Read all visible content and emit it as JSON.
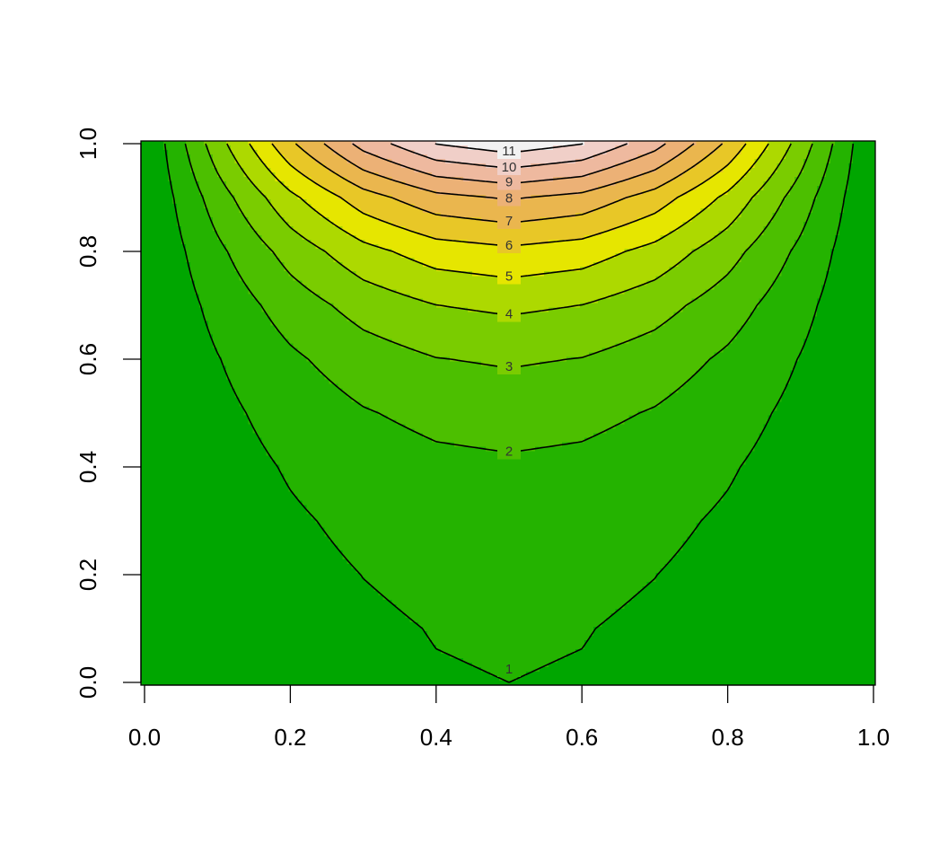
{
  "chart_data": {
    "type": "contour",
    "x": [
      0,
      0.1,
      0.2,
      0.3,
      0.4,
      0.5,
      0.6,
      0.7,
      0.8,
      0.9,
      1
    ],
    "y": [
      0,
      0.1,
      0.2,
      0.3,
      0.4,
      0.5,
      0.6,
      0.7,
      0.8,
      0.9,
      1
    ],
    "z": [
      [
        0,
        0.31,
        0.59,
        0.81,
        0.95,
        1,
        0.95,
        0.81,
        0.59,
        0.31,
        0
      ],
      [
        0,
        0.33,
        0.64,
        0.87,
        1.03,
        1.08,
        1.03,
        0.87,
        0.64,
        0.33,
        0
      ],
      [
        0,
        0.38,
        0.73,
        1.01,
        1.18,
        1.25,
        1.18,
        1.01,
        0.73,
        0.38,
        0
      ],
      [
        0,
        0.46,
        0.88,
        1.21,
        1.42,
        1.49,
        1.42,
        1.21,
        0.88,
        0.46,
        0
      ],
      [
        0,
        0.57,
        1.09,
        1.5,
        1.77,
        1.86,
        1.77,
        1.5,
        1.09,
        0.57,
        0
      ],
      [
        0,
        0.74,
        1.4,
        1.93,
        2.26,
        2.38,
        2.26,
        1.93,
        1.4,
        0.74,
        0
      ],
      [
        0,
        0.96,
        1.83,
        2.52,
        2.97,
        3.12,
        2.97,
        2.52,
        1.83,
        0.96,
        0
      ],
      [
        0,
        1.3,
        2.47,
        3.4,
        3.99,
        4.2,
        3.99,
        3.4,
        2.47,
        1.3,
        0
      ],
      [
        0,
        1.78,
        3.39,
        4.67,
        5.49,
        5.77,
        5.49,
        4.67,
        3.39,
        1.78,
        0
      ],
      [
        0,
        2.5,
        4.76,
        6.55,
        7.7,
        8.1,
        7.7,
        6.55,
        4.76,
        2.5,
        0
      ],
      [
        0,
        3.58,
        6.81,
        9.38,
        11.02,
        11.59,
        11.02,
        9.38,
        6.81,
        3.58,
        0
      ]
    ],
    "levels": [
      1,
      2,
      3,
      4,
      5,
      6,
      7,
      8,
      9,
      10,
      11
    ],
    "zlim": [
      0,
      12
    ],
    "colors": [
      "#00A600",
      "#24B300",
      "#4CBF00",
      "#7ACC00",
      "#ADD900",
      "#E6E600",
      "#E8C727",
      "#EAB64E",
      "#ECB176",
      "#EEB99F",
      "#F0CFC8",
      "#F2F2F2"
    ],
    "line_color": "#000000",
    "xlim": [
      0,
      1
    ],
    "ylim": [
      0,
      1
    ],
    "xticks": [
      {
        "value": 0,
        "label": "0.0"
      },
      0.2,
      0.4,
      0.6,
      0.8,
      {
        "value": 1,
        "label": "1.0"
      }
    ],
    "yticks": [
      {
        "value": 0,
        "label": "0.0"
      },
      0.2,
      0.4,
      0.6,
      0.8,
      {
        "value": 1,
        "label": "1.0"
      }
    ]
  }
}
